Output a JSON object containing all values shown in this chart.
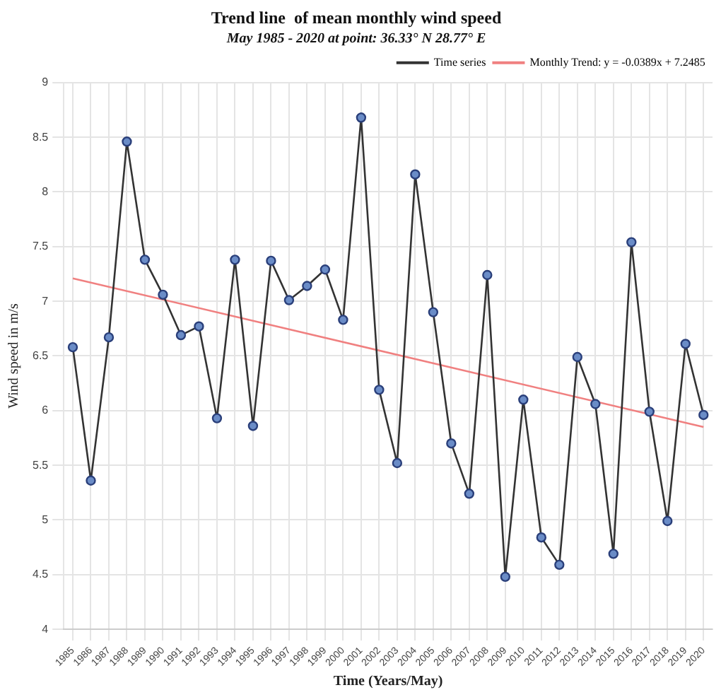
{
  "chart_data": {
    "type": "line",
    "title": "Trend line  of mean monthly wind speed",
    "subtitle": "May 1985 - 2020 at point: 36.33° N 28.77° E",
    "xlabel": "Time (Years/May)",
    "ylabel": "Wind speed in m/s",
    "categories": [
      "1985",
      "1986",
      "1987",
      "1988",
      "1989",
      "1990",
      "1991",
      "1992",
      "1993",
      "1994",
      "1995",
      "1996",
      "1997",
      "1998",
      "1999",
      "2000",
      "2001",
      "2002",
      "2003",
      "2004",
      "2005",
      "2006",
      "2007",
      "2008",
      "2009",
      "2010",
      "2011",
      "2012",
      "2013",
      "2014",
      "2015",
      "2016",
      "2017",
      "2018",
      "2019",
      "2020"
    ],
    "series": [
      {
        "name": "Time series",
        "color": "#333333",
        "marker": "circle",
        "values": [
          6.58,
          5.36,
          6.67,
          8.46,
          7.38,
          7.06,
          6.69,
          6.77,
          5.93,
          7.38,
          5.86,
          7.37,
          7.01,
          7.14,
          7.29,
          6.83,
          8.68,
          6.19,
          5.52,
          8.16,
          6.9,
          5.7,
          5.24,
          7.24,
          4.48,
          6.1,
          4.84,
          4.59,
          6.49,
          6.06,
          4.69,
          7.54,
          5.99,
          4.99,
          6.61,
          5.96
        ]
      },
      {
        "name": "Monthly Trend: y = -0.0389x + 7.2485",
        "color": "#f08080",
        "type": "line",
        "marker": "none",
        "values": [
          7.21,
          null,
          null,
          null,
          null,
          null,
          null,
          null,
          null,
          null,
          null,
          null,
          null,
          null,
          null,
          null,
          null,
          null,
          null,
          null,
          null,
          null,
          null,
          null,
          null,
          null,
          null,
          null,
          null,
          null,
          null,
          null,
          null,
          null,
          null,
          5.85
        ]
      }
    ],
    "ylim": [
      4,
      9
    ],
    "yticks": [
      4,
      4.5,
      5,
      5.5,
      6,
      6.5,
      7,
      7.5,
      8,
      8.5,
      9
    ],
    "grid": true,
    "legend": "top right",
    "line_style": "solid"
  }
}
